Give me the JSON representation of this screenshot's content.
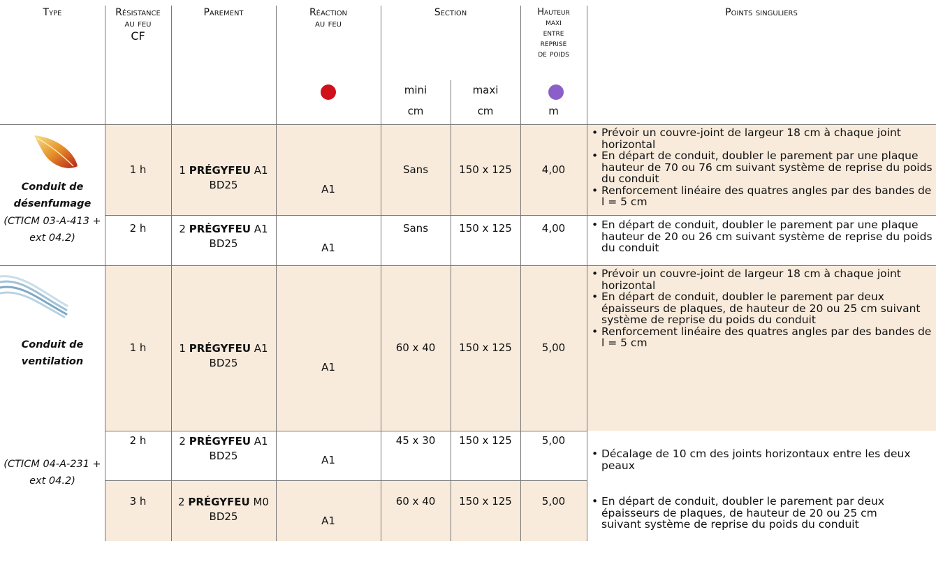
{
  "header": {
    "type": "Type",
    "resistance": [
      "Résistance",
      "au feu"
    ],
    "resistance_unit": "CF",
    "parement": "Parement",
    "reaction": [
      "Réaction",
      "au feu"
    ],
    "section": "Section",
    "section_min": "mini",
    "section_min_unit": "cm",
    "section_max": "maxi",
    "section_max_unit": "cm",
    "hauteur": [
      "Hauteur",
      "maxi",
      "entre",
      "reprise",
      "de poids"
    ],
    "hauteur_unit": "m",
    "points": "Points singuliers"
  },
  "groups": [
    {
      "name": "Conduit de désenfumage",
      "reference": "(CTICM 03-A-413 + ext 04.2)"
    },
    {
      "name": "Conduit de ventilation",
      "reference": "(CTICM 04-A-231 + ext 04.2)"
    }
  ],
  "rows": [
    {
      "resistance": "1 h",
      "parement_count": "1",
      "parement_product": "PRÉGYFEU",
      "parement_grade": "A1",
      "parement_board": "BD25",
      "reaction": "A1",
      "section_min": "Sans",
      "section_max": "150 x 125",
      "hauteur": "4,00",
      "points": [
        "Prévoir un couvre-joint de largeur 18 cm à chaque joint horizontal",
        "En départ de conduit, doubler le parement par une plaque hauteur de 70 ou 76 cm suivant système de reprise du poids du conduit",
        "Renforcement linéaire des quatres angles par des bandes de l = 5 cm"
      ]
    },
    {
      "resistance": "2 h",
      "parement_count": "2",
      "parement_product": "PRÉGYFEU",
      "parement_grade": "A1",
      "parement_board": "BD25",
      "reaction": "A1",
      "section_min": "Sans",
      "section_max": "150 x 125",
      "hauteur": "4,00",
      "points": [
        "En départ de conduit, doubler le parement par une plaque hauteur de 20 ou 26 cm suivant système de reprise du poids du conduit"
      ]
    },
    {
      "resistance": "1 h",
      "parement_count": "1",
      "parement_product": "PRÉGYFEU",
      "parement_grade": "A1",
      "parement_board": "BD25",
      "reaction": "A1",
      "section_min": "60 x 40",
      "section_max": "150 x 125",
      "hauteur": "5,00",
      "points": [
        "Prévoir un couvre-joint de largeur 18 cm à chaque joint horizontal",
        "En départ de conduit, doubler le parement par deux épaisseurs de plaques, de hauteur de 20 ou 25 cm suivant système de reprise du poids du conduit",
        "Renforcement linéaire des quatres angles par des bandes de l = 5 cm"
      ]
    },
    {
      "resistance": "2 h",
      "parement_count": "2",
      "parement_product": "PRÉGYFEU",
      "parement_grade": "A1",
      "parement_board": "BD25",
      "reaction": "A1",
      "section_min": "45 x 30",
      "section_max": "150 x 125",
      "hauteur": "5,00",
      "points": [
        "Décalage de 10 cm des joints horizontaux entre les deux peaux"
      ]
    },
    {
      "resistance": "3 h",
      "parement_count": "2",
      "parement_product": "PRÉGYFEU",
      "parement_grade": "M0",
      "parement_board": "BD25",
      "reaction": "A1",
      "section_min": "60 x 40",
      "section_max": "150 x 125",
      "hauteur": "5,00",
      "points": [
        "En départ de conduit, doubler le parement par deux épaisseurs de plaques, de hauteur de 20 ou 25 cm suivant système de reprise du poids du conduit"
      ]
    }
  ]
}
